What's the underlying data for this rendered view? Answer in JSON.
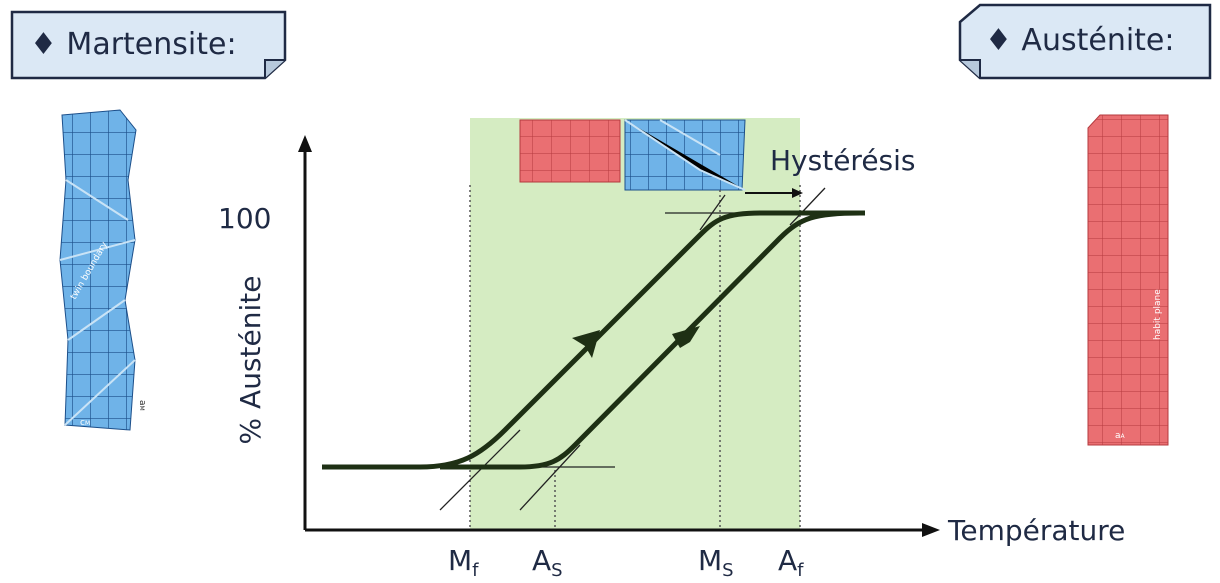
{
  "callouts": {
    "left": "♦ Martensite:",
    "right": "♦ Austénite:"
  },
  "martensite_image": {
    "label": "twin boundary",
    "dim_a": "a",
    "dim_a_sub": "M",
    "dim_c": "c",
    "dim_c_sub": "M"
  },
  "austenite_image": {
    "label": "habit plane",
    "dim_a": "a",
    "dim_a_sub": "A"
  },
  "graph": {
    "y_label": "% Austénite",
    "y_tick": "100",
    "x_label": "Température",
    "hysteresis": "Hystérésis",
    "temperatures": [
      {
        "main": "M",
        "sub": "f"
      },
      {
        "main": "A",
        "sub": "S"
      },
      {
        "main": "M",
        "sub": "S"
      },
      {
        "main": "A",
        "sub": "f"
      }
    ]
  }
}
